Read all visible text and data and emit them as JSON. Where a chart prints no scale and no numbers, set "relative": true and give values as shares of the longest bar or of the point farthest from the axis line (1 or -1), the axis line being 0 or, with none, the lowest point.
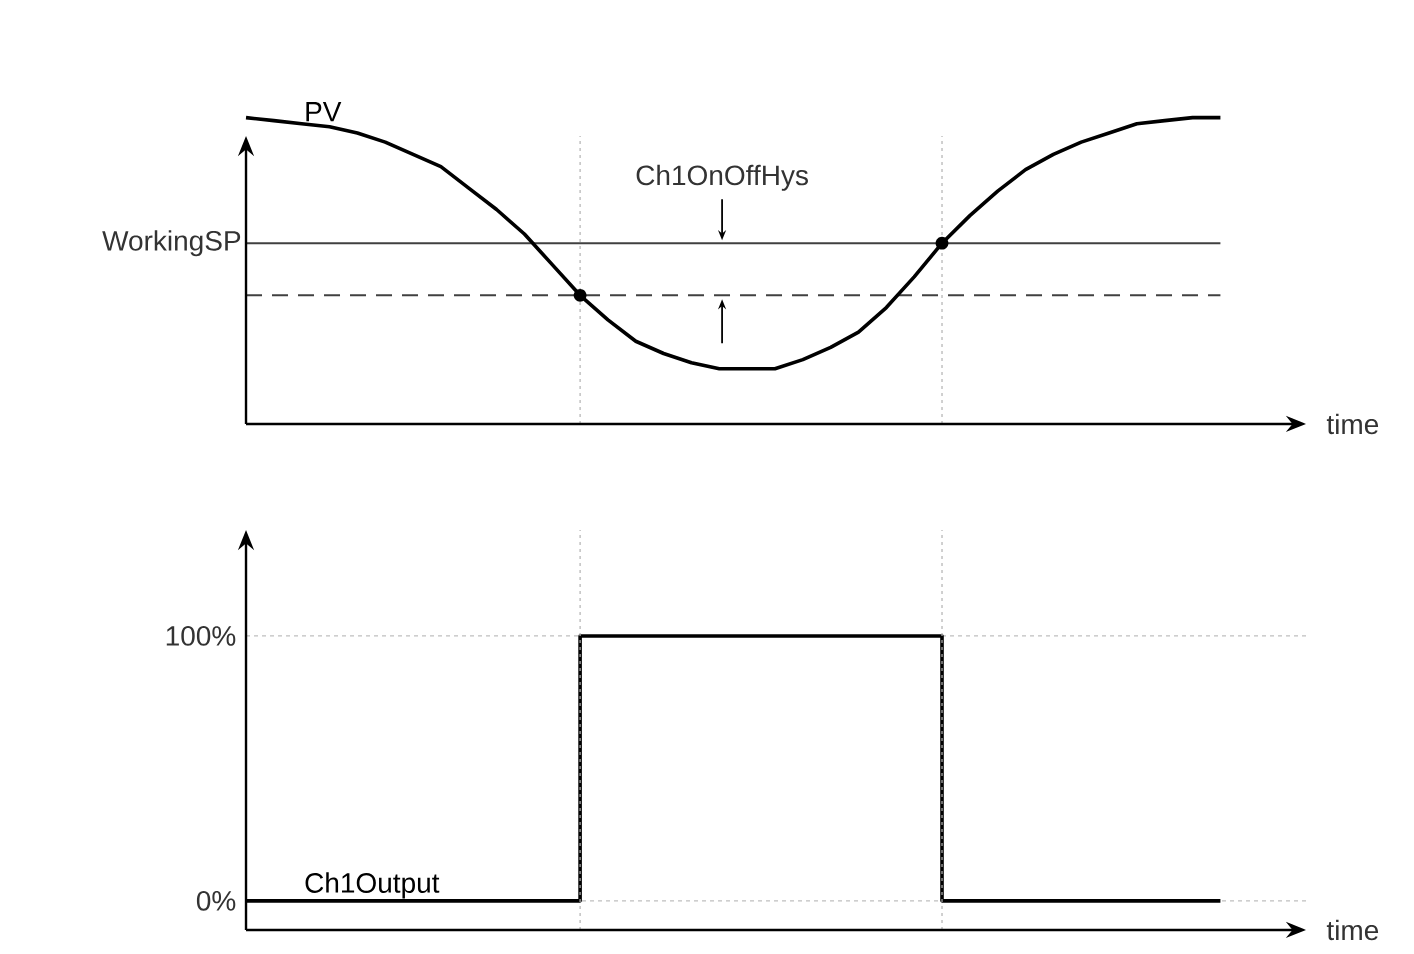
{
  "chart_data": [
    {
      "type": "line",
      "relative": true,
      "xlabel": "time",
      "categories": [
        null,
        null,
        null,
        null,
        null,
        null,
        null,
        null,
        null,
        null,
        null,
        null,
        null,
        null,
        null,
        null,
        null,
        null,
        null,
        null,
        null,
        null,
        null,
        null,
        null,
        null,
        null,
        null,
        null,
        null,
        null,
        null,
        null,
        null,
        null,
        null
      ],
      "series": [
        {
          "name": "PV",
          "color": "#000000",
          "values": [
            1.0,
            0.99,
            0.98,
            0.97,
            0.95,
            0.92,
            0.88,
            0.84,
            0.77,
            0.7,
            0.62,
            0.52,
            0.42,
            0.34,
            0.27,
            0.23,
            0.2,
            0.18,
            0.18,
            0.18,
            0.21,
            0.25,
            0.3,
            0.38,
            0.48,
            0.59,
            0.68,
            0.76,
            0.83,
            0.88,
            0.92,
            0.95,
            0.98,
            0.99,
            1.0,
            1.0
          ]
        }
      ],
      "ref_lines": [
        {
          "axis": "y",
          "value": 0.59,
          "label": "WorkingSP",
          "color": "#404040"
        },
        {
          "axis": "y",
          "value": 0.42,
          "color": "#404040",
          "line_style": "dashed"
        }
      ],
      "annotations": [
        "Ch1OnOffHys"
      ]
    },
    {
      "type": "step",
      "xlabel": "time",
      "categories": [
        null,
        null,
        null,
        null,
        null,
        null,
        null,
        null,
        null,
        null,
        null,
        null,
        null,
        null,
        null,
        null,
        null,
        null,
        null,
        null,
        null,
        null,
        null,
        null,
        null,
        null,
        null,
        null,
        null,
        null,
        null,
        null,
        null,
        null,
        null,
        null
      ],
      "ylim": [
        -11,
        140
      ],
      "yticks": [
        {
          "value": 0,
          "label": "0%"
        },
        {
          "value": 100,
          "label": "100%"
        }
      ],
      "grid": "y",
      "series": [
        {
          "name": "Ch1Output",
          "color": "#000000",
          "values": [
            0,
            0,
            0,
            0,
            0,
            0,
            0,
            0,
            0,
            0,
            0,
            0,
            100,
            100,
            100,
            100,
            100,
            100,
            100,
            100,
            100,
            100,
            100,
            100,
            100,
            0,
            0,
            0,
            0,
            0,
            0,
            0,
            0,
            0,
            0,
            0
          ]
        }
      ]
    }
  ]
}
